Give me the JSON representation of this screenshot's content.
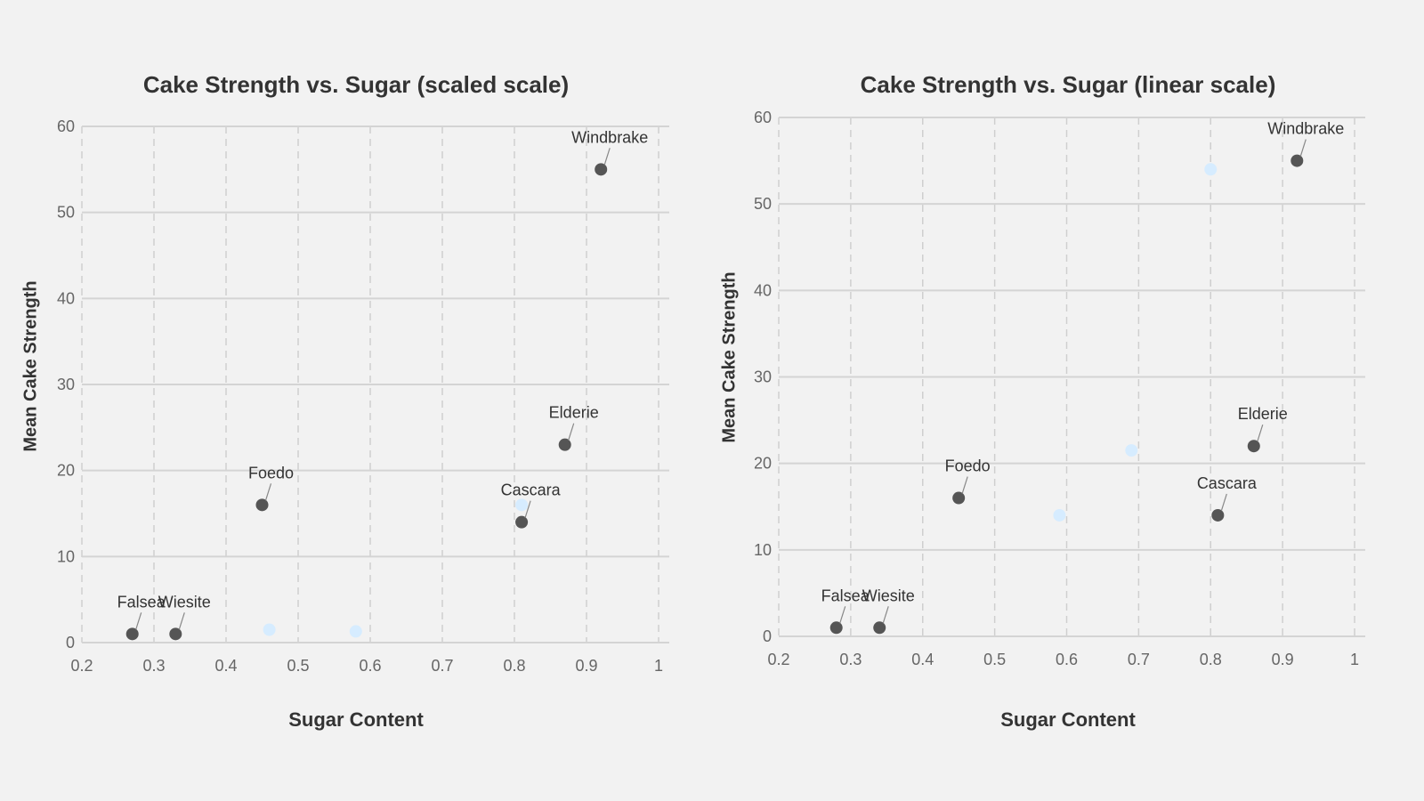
{
  "chart_data": [
    {
      "type": "scatter",
      "title": "Cake Strength vs. Sugar Content (scaled scale)",
      "xlabel": "Sugar Content",
      "ylabel": "Mean Cake Strength",
      "xlim": [
        0.2,
        1.0
      ],
      "ylim": [
        0,
        60
      ],
      "xticks": [
        "0.2",
        "0.3",
        "0.4",
        "0.5",
        "0.6",
        "0.7",
        "0.8",
        "0.9",
        "1"
      ],
      "yticks": [
        "0",
        "10",
        "20",
        "30",
        "40",
        "50",
        "60"
      ],
      "grid": true,
      "series": [
        {
          "name": "labeled",
          "color": "#555555",
          "points": [
            {
              "x": 0.27,
              "y": 1,
              "label": "Falsea"
            },
            {
              "x": 0.33,
              "y": 1,
              "label": "Wiesite"
            },
            {
              "x": 0.45,
              "y": 16,
              "label": "Foedo"
            },
            {
              "x": 0.81,
              "y": 14,
              "label": "Cascara"
            },
            {
              "x": 0.87,
              "y": 23,
              "label": "Elderie"
            },
            {
              "x": 0.92,
              "y": 55,
              "label": "Windbrake"
            }
          ]
        },
        {
          "name": "unlabeled",
          "color": "#d6ecff",
          "points": [
            {
              "x": 0.46,
              "y": 1.5
            },
            {
              "x": 0.58,
              "y": 1.3
            },
            {
              "x": 0.81,
              "y": 16
            }
          ]
        }
      ]
    },
    {
      "type": "scatter",
      "title": "Cake Strength vs. Sugar Content (linear scale)",
      "xlabel": "Sugar Content",
      "ylabel": "Mean Cake Strength",
      "xlim": [
        0.2,
        1.0
      ],
      "ylim": [
        0,
        60
      ],
      "xticks": [
        "0.2",
        "0.3",
        "0.4",
        "0.5",
        "0.6",
        "0.7",
        "0.8",
        "0.9",
        "1"
      ],
      "yticks": [
        "0",
        "10",
        "20",
        "30",
        "40",
        "50",
        "60"
      ],
      "grid": true,
      "series": [
        {
          "name": "labeled",
          "color": "#555555",
          "points": [
            {
              "x": 0.28,
              "y": 1,
              "label": "Falsea"
            },
            {
              "x": 0.34,
              "y": 1,
              "label": "Wiesite"
            },
            {
              "x": 0.45,
              "y": 16,
              "label": "Foedo"
            },
            {
              "x": 0.81,
              "y": 14,
              "label": "Cascara"
            },
            {
              "x": 0.86,
              "y": 22,
              "label": "Elderie"
            },
            {
              "x": 0.92,
              "y": 55,
              "label": "Windbrake"
            }
          ]
        },
        {
          "name": "unlabeled",
          "color": "#d6ecff",
          "points": [
            {
              "x": 0.59,
              "y": 14
            },
            {
              "x": 0.69,
              "y": 21.5
            },
            {
              "x": 0.8,
              "y": 54
            }
          ]
        }
      ]
    }
  ],
  "left": {
    "title": "Cake Strength vs. Sugar (scaled scale)",
    "xlabel": "Sugar Content",
    "ylabel": "Mean Cake Strength"
  },
  "right": {
    "title": "Cake Strength vs. Sugar (linear scale)",
    "xlabel": "Sugar Content",
    "ylabel": "Mean Cake Strength"
  }
}
